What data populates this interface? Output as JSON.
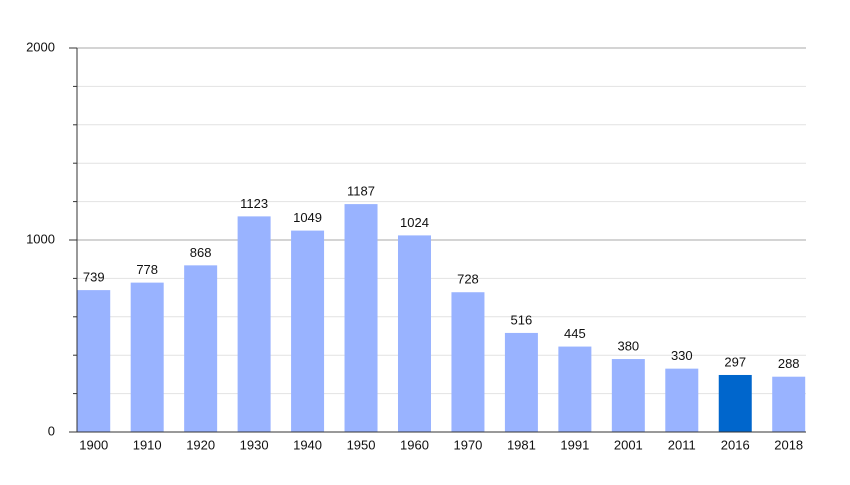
{
  "chart_data": {
    "type": "bar",
    "categories": [
      "1900",
      "1910",
      "1920",
      "1930",
      "1940",
      "1950",
      "1960",
      "1970",
      "1981",
      "1991",
      "2001",
      "2011",
      "2016",
      "2018"
    ],
    "values": [
      739,
      778,
      868,
      1123,
      1049,
      1187,
      1024,
      728,
      516,
      445,
      380,
      330,
      297,
      288
    ],
    "colors": [
      "#99b3ff",
      "#99b3ff",
      "#99b3ff",
      "#99b3ff",
      "#99b3ff",
      "#99b3ff",
      "#99b3ff",
      "#99b3ff",
      "#99b3ff",
      "#99b3ff",
      "#99b3ff",
      "#99b3ff",
      "#0066cc",
      "#99b3ff"
    ],
    "ylim": [
      0,
      2000
    ],
    "yticks": [
      0,
      1000,
      2000
    ],
    "minor_yticks": [
      200,
      400,
      600,
      800,
      1200,
      1400,
      1600,
      1800
    ],
    "grid": true
  }
}
